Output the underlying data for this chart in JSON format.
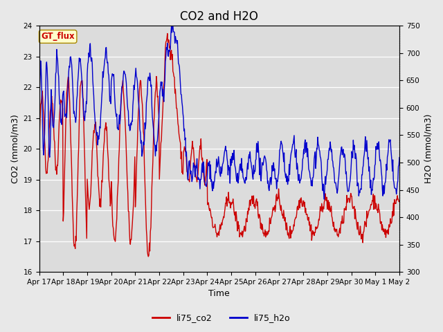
{
  "title": "CO2 and H2O",
  "xlabel": "Time",
  "ylabel_left": "CO2 (mmol/m3)",
  "ylabel_right": "H2O (mmol/m3)",
  "co2_ylim": [
    16.0,
    24.0
  ],
  "h2o_ylim": [
    300,
    750
  ],
  "co2_yticks": [
    16.0,
    17.0,
    18.0,
    19.0,
    20.0,
    21.0,
    22.0,
    23.0,
    24.0
  ],
  "h2o_yticks": [
    300,
    350,
    400,
    450,
    500,
    550,
    600,
    650,
    700,
    750
  ],
  "xtick_labels": [
    "Apr 17",
    "Apr 18",
    "Apr 19",
    "Apr 20",
    "Apr 21",
    "Apr 22",
    "Apr 23",
    "Apr 24",
    "Apr 25",
    "Apr 26",
    "Apr 27",
    "Apr 28",
    "Apr 29",
    "Apr 30",
    "May 1",
    "May 2"
  ],
  "background_color": "#e8e8e8",
  "plot_bg_color": "#dcdcdc",
  "co2_color": "#cc0000",
  "h2o_color": "#0000cc",
  "annotation_text": "GT_flux",
  "annotation_color": "#cc0000",
  "annotation_bg": "#ffffcc",
  "annotation_edge": "#aa8800",
  "legend_co2": "li75_co2",
  "legend_h2o": "li75_h2o",
  "title_fontsize": 12,
  "axis_fontsize": 9,
  "tick_fontsize": 7.5,
  "line_width": 1.0,
  "xlim": [
    0,
    15
  ]
}
